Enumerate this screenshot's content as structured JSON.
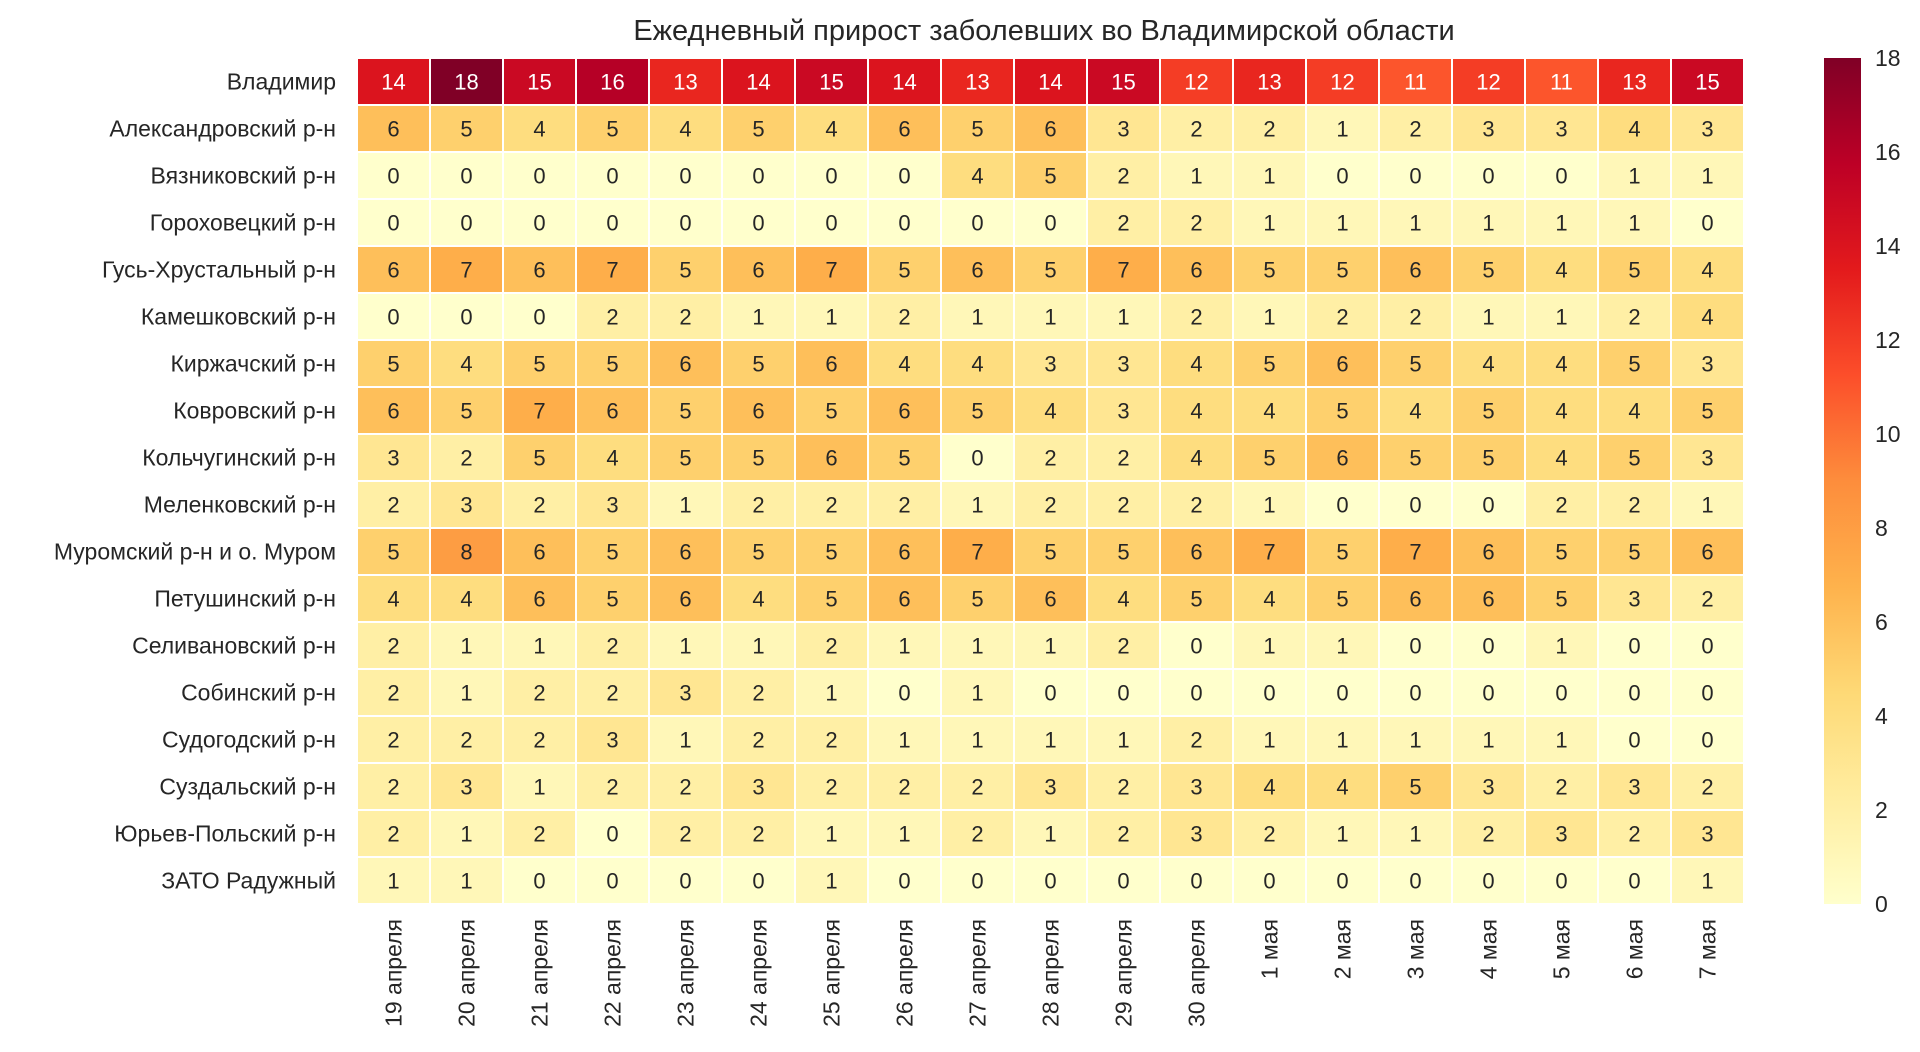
{
  "chart_data": {
    "type": "heatmap",
    "title": "Ежедневный прирост заболевших во Владимирской области",
    "x": [
      "19 апреля",
      "20 апреля",
      "21 апреля",
      "22 апреля",
      "23 апреля",
      "24 апреля",
      "25 апреля",
      "26 апреля",
      "27 апреля",
      "28 апреля",
      "29 апреля",
      "30 апреля",
      "1 мая",
      "2 мая",
      "3 мая",
      "4 мая",
      "5 мая",
      "6 мая",
      "7 мая"
    ],
    "y": [
      "Владимир",
      "Александровский р-н",
      "Вязниковский р-н",
      "Гороховецкий р-н",
      "Гусь-Хрустальный р-н",
      "Камешковский р-н",
      "Киржачский р-н",
      "Ковровский р-н",
      "Кольчугинский р-н",
      "Меленковский р-н",
      "Муромский р-н и о. Муром",
      "Петушинский р-н",
      "Селивановский р-н",
      "Собинский р-н",
      "Судогодский р-н",
      "Суздальский р-н",
      "Юрьев-Польский р-н",
      "ЗАТО Радужный"
    ],
    "values": [
      [
        14,
        18,
        15,
        16,
        13,
        14,
        15,
        14,
        13,
        14,
        15,
        12,
        13,
        12,
        11,
        12,
        11,
        13,
        15
      ],
      [
        6,
        5,
        4,
        5,
        4,
        5,
        4,
        6,
        5,
        6,
        3,
        2,
        2,
        1,
        2,
        3,
        3,
        4,
        3
      ],
      [
        0,
        0,
        0,
        0,
        0,
        0,
        0,
        0,
        4,
        5,
        2,
        1,
        1,
        0,
        0,
        0,
        0,
        1,
        1
      ],
      [
        0,
        0,
        0,
        0,
        0,
        0,
        0,
        0,
        0,
        0,
        2,
        2,
        1,
        1,
        1,
        1,
        1,
        1,
        0
      ],
      [
        6,
        7,
        6,
        7,
        5,
        6,
        7,
        5,
        6,
        5,
        7,
        6,
        5,
        5,
        6,
        5,
        4,
        5,
        4
      ],
      [
        0,
        0,
        0,
        2,
        2,
        1,
        1,
        2,
        1,
        1,
        1,
        2,
        1,
        2,
        2,
        1,
        1,
        2,
        4
      ],
      [
        5,
        4,
        5,
        5,
        6,
        5,
        6,
        4,
        4,
        3,
        3,
        4,
        5,
        6,
        5,
        4,
        4,
        5,
        3
      ],
      [
        6,
        5,
        7,
        6,
        5,
        6,
        5,
        6,
        5,
        4,
        3,
        4,
        4,
        5,
        4,
        5,
        4,
        4,
        5
      ],
      [
        3,
        2,
        5,
        4,
        5,
        5,
        6,
        5,
        0,
        2,
        2,
        4,
        5,
        6,
        5,
        5,
        4,
        5,
        3
      ],
      [
        2,
        3,
        2,
        3,
        1,
        2,
        2,
        2,
        1,
        2,
        2,
        2,
        1,
        0,
        0,
        0,
        2,
        2,
        1
      ],
      [
        5,
        8,
        6,
        5,
        6,
        5,
        5,
        6,
        7,
        5,
        5,
        6,
        7,
        5,
        7,
        6,
        5,
        5,
        6
      ],
      [
        4,
        4,
        6,
        5,
        6,
        4,
        5,
        6,
        5,
        6,
        4,
        5,
        4,
        5,
        6,
        6,
        5,
        3,
        2
      ],
      [
        2,
        1,
        1,
        2,
        1,
        1,
        2,
        1,
        1,
        1,
        2,
        0,
        1,
        1,
        0,
        0,
        1,
        0,
        0
      ],
      [
        2,
        1,
        2,
        2,
        3,
        2,
        1,
        0,
        1,
        0,
        0,
        0,
        0,
        0,
        0,
        0,
        0,
        0,
        0
      ],
      [
        2,
        2,
        2,
        3,
        1,
        2,
        2,
        1,
        1,
        1,
        1,
        2,
        1,
        1,
        1,
        1,
        1,
        0,
        0
      ],
      [
        2,
        3,
        1,
        2,
        2,
        3,
        2,
        2,
        2,
        3,
        2,
        3,
        4,
        4,
        5,
        3,
        2,
        3,
        2
      ],
      [
        2,
        1,
        2,
        0,
        2,
        2,
        1,
        1,
        2,
        1,
        2,
        3,
        2,
        1,
        1,
        2,
        3,
        2,
        3
      ],
      [
        1,
        1,
        0,
        0,
        0,
        0,
        1,
        0,
        0,
        0,
        0,
        0,
        0,
        0,
        0,
        0,
        0,
        0,
        1
      ]
    ],
    "colorbar": {
      "min": 0,
      "max": 18,
      "ticks": [
        0,
        2,
        4,
        6,
        8,
        10,
        12,
        14,
        16,
        18
      ]
    },
    "colormap": "YlOrRd",
    "colors": [
      "#ffffcc",
      "#ffeda0",
      "#fed976",
      "#feb24c",
      "#fd8d3c",
      "#fc4e2a",
      "#e31a1c",
      "#bd0026",
      "#800026"
    ]
  }
}
